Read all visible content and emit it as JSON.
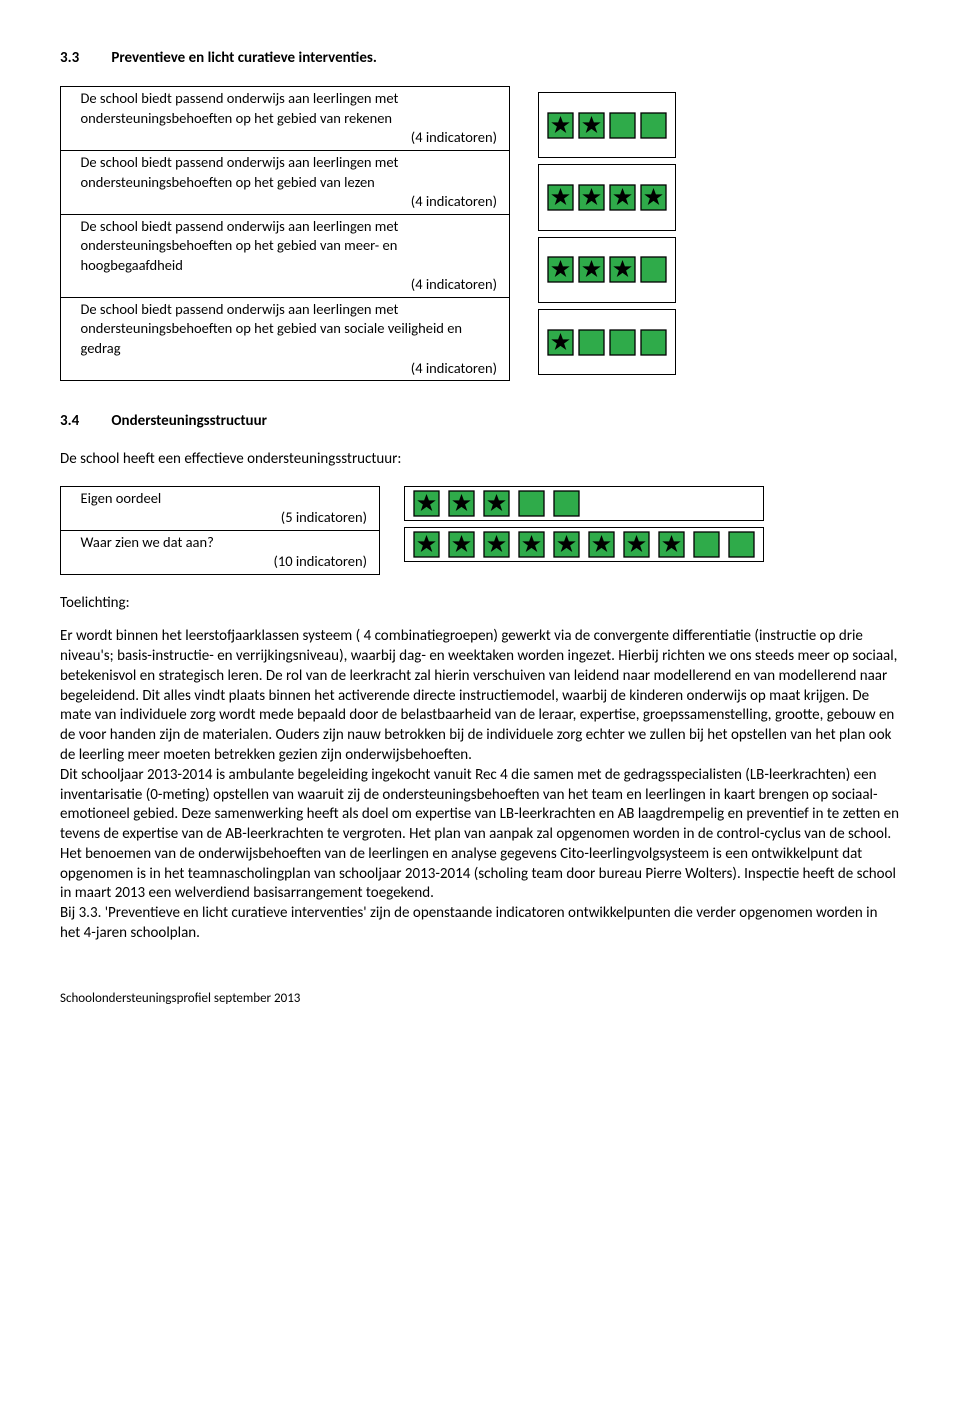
{
  "colors": {
    "box_fill": "#2fab4a",
    "box_stroke": "#000000",
    "star_fill": "#000000",
    "page_bg": "#ffffff",
    "text": "#000000"
  },
  "section33": {
    "num": "3.3",
    "title": "Preventieve en licht curatieve interventies.",
    "rows": [
      {
        "text": "De school biedt passend onderwijs aan leerlingen met ondersteuningsbehoeften op het gebied van rekenen",
        "indic": "(4 indicatoren)",
        "stars": [
          true,
          true,
          false,
          false
        ]
      },
      {
        "text": "De school biedt passend onderwijs aan leerlingen met ondersteuningsbehoeften op het gebied van lezen",
        "indic": "(4 indicatoren)",
        "stars": [
          true,
          true,
          true,
          true
        ]
      },
      {
        "text": "De school biedt passend onderwijs aan leerlingen met ondersteuningsbehoeften op het gebied van meer- en hoogbegaafdheid",
        "indic": "(4 indicatoren)",
        "stars": [
          true,
          true,
          true,
          false
        ]
      },
      {
        "text": "De school biedt passend onderwijs aan leerlingen met ondersteuningsbehoeften op het gebied van sociale veiligheid en gedrag",
        "indic": "(4 indicatoren)",
        "stars": [
          true,
          false,
          false,
          false
        ]
      }
    ]
  },
  "section34": {
    "num": "3.4",
    "title": "Ondersteuningsstructuur",
    "intro": "De school heeft een effectieve ondersteuningsstructuur:",
    "rows": [
      {
        "label": "Eigen oordeel",
        "indic": "(5 indicatoren)",
        "stars": [
          true,
          true,
          true,
          false,
          false
        ]
      },
      {
        "label": "Waar zien we dat aan?",
        "indic": "(10 indicatoren)",
        "stars": [
          true,
          true,
          true,
          true,
          true,
          true,
          true,
          true,
          false,
          false
        ]
      }
    ]
  },
  "toelichting_label": "Toelichting:",
  "body": "Er wordt binnen het leerstofjaarklassen systeem ( 4 combinatiegroepen) gewerkt via de convergente differentiatie (instructie op drie niveau's; basis-instructie- en verrijkingsniveau), waarbij dag- en weektaken worden ingezet. Hierbij richten we ons steeds meer op sociaal, betekenisvol en strategisch leren. De rol van de leerkracht  zal hierin verschuiven van  leidend naar modellerend en van modellerend naar begeleidend. Dit alles vindt plaats binnen het activerende directe instructiemodel, waarbij de kinderen onderwijs op maat krijgen. De mate van individuele zorg wordt mede bepaald door de belastbaarheid van de leraar, expertise, groepssamenstelling, grootte, gebouw en de voor handen zijn de materialen. Ouders zijn nauw betrokken bij de individuele zorg echter we zullen bij het opstellen van het plan ook de leerling meer moeten betrekken gezien zijn onderwijsbehoeften.\nDit schooljaar 2013-2014 is ambulante begeleiding ingekocht vanuit Rec 4 die samen met de gedragsspecialisten (LB-leerkrachten) een inventarisatie (0-meting) opstellen van waaruit zij de ondersteuningsbehoeften van het team en leerlingen in kaart brengen op sociaal-emotioneel gebied. Deze samenwerking heeft als doel om expertise van LB-leerkrachten en AB laagdrempelig en preventief in te zetten en tevens de expertise van de AB-leerkrachten te vergroten. Het plan van aanpak zal opgenomen worden in de control-cyclus van de school. Het benoemen van de onderwijsbehoeften van de leerlingen en analyse gegevens Cito-leerlingvolgsysteem is een ontwikkelpunt dat opgenomen is in het  teamnascholingplan van schooljaar 2013-2014 (scholing team door bureau Pierre Wolters). Inspectie heeft de school in maart 2013 een welverdiend basisarrangement toegekend.\nBij 3.3. 'Preventieve en licht curatieve interventies' zijn de openstaande indicatoren ontwikkelpunten die verder opgenomen worden in het 4-jaren schoolplan.",
  "footer": "Schoolondersteuningsprofiel september 2013"
}
